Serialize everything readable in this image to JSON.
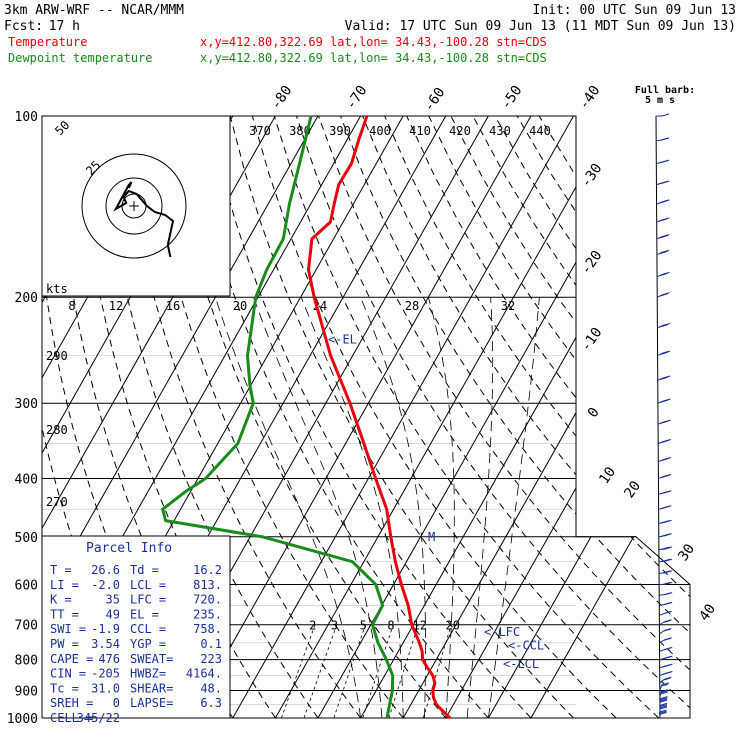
{
  "header": {
    "model": "3km ARW-WRF -- NCAR/MMM",
    "init": "Init: 00 UTC Sun 09 Jun 13",
    "fcst_label": "Fcst:",
    "fcst_value": "17 h",
    "valid": "Valid: 17 UTC Sun 09 Jun 13 (11 MDT Sun 09 Jun 13)",
    "legend": [
      {
        "label": "Temperature",
        "info": "x,y=412.80,322.69   lat,lon= 34.43,-100.28  stn=CDS",
        "color": "#e8000b"
      },
      {
        "label": "Dewpoint temperature",
        "info": "x,y=412.80,322.69   lat,lon= 34.43,-100.28  stn=CDS",
        "color": "#1a8a1a"
      }
    ]
  },
  "colors": {
    "temperature": "#e8000b",
    "dewpoint": "#1a8a1a",
    "parcel_text": "#1a2fa0",
    "isobars": "#000000",
    "adiabats": "#000000"
  },
  "chart_data": {
    "type": "line",
    "diagram": "skew-T log-P",
    "pressure_levels": [
      100,
      200,
      300,
      400,
      500,
      600,
      700,
      800,
      900,
      1000
    ],
    "isotherm_labels": [
      "-80",
      "-70",
      "-60",
      "-50",
      "-40",
      "-30",
      "-20",
      "-10",
      "0",
      "10",
      "20",
      "30",
      "40"
    ],
    "theta_labels": [
      "370",
      "380",
      "390",
      "400",
      "410",
      "420",
      "430",
      "440"
    ],
    "mixing_ratio_labels": [
      "2",
      "3",
      "5",
      "8",
      "12",
      "20"
    ],
    "inset_speed_labels": [
      "8",
      "12",
      "16",
      "20",
      "24",
      "28",
      "32"
    ],
    "inset_ring_labels": [
      "50",
      "25"
    ],
    "inset_unit": "kts",
    "side_theta_labels": [
      "290",
      "280",
      "270"
    ],
    "series": [
      {
        "name": "Temperature",
        "points": [
          {
            "p": 1000,
            "t": 31.0
          },
          {
            "p": 975,
            "t": 28.5
          },
          {
            "p": 950,
            "t": 26.0
          },
          {
            "p": 925,
            "t": 24.4
          },
          {
            "p": 900,
            "t": 23.3
          },
          {
            "p": 875,
            "t": 22.8
          },
          {
            "p": 850,
            "t": 21.3
          },
          {
            "p": 825,
            "t": 19.0
          },
          {
            "p": 800,
            "t": 16.8
          },
          {
            "p": 775,
            "t": 15.6
          },
          {
            "p": 750,
            "t": 13.8
          },
          {
            "p": 700,
            "t": 9.6
          },
          {
            "p": 650,
            "t": 6.2
          },
          {
            "p": 600,
            "t": 1.8
          },
          {
            "p": 550,
            "t": -2.6
          },
          {
            "p": 500,
            "t": -7.0
          },
          {
            "p": 450,
            "t": -11.6
          },
          {
            "p": 400,
            "t": -18.3
          },
          {
            "p": 350,
            "t": -25.7
          },
          {
            "p": 300,
            "t": -34.3
          },
          {
            "p": 250,
            "t": -45.2
          },
          {
            "p": 200,
            "t": -56.8
          },
          {
            "p": 180,
            "t": -61.8
          },
          {
            "p": 160,
            "t": -65.1
          },
          {
            "p": 150,
            "t": -63.0
          },
          {
            "p": 140,
            "t": -64.5
          },
          {
            "p": 130,
            "t": -66.0
          },
          {
            "p": 120,
            "t": -65.8
          },
          {
            "p": 110,
            "t": -67.2
          },
          {
            "p": 100,
            "t": -68.5
          }
        ]
      },
      {
        "name": "Dewpoint temperature",
        "points": [
          {
            "p": 1000,
            "t": 16.2
          },
          {
            "p": 950,
            "t": 15.0
          },
          {
            "p": 900,
            "t": 13.8
          },
          {
            "p": 850,
            "t": 11.9
          },
          {
            "p": 800,
            "t": 8.3
          },
          {
            "p": 750,
            "t": 4.1
          },
          {
            "p": 700,
            "t": 0.4
          },
          {
            "p": 650,
            "t": 0.2
          },
          {
            "p": 600,
            "t": -4.2
          },
          {
            "p": 550,
            "t": -12.7
          },
          {
            "p": 500,
            "t": -37.1
          },
          {
            "p": 470,
            "t": -62.0
          },
          {
            "p": 450,
            "t": -64.2
          },
          {
            "p": 420,
            "t": -61.1
          },
          {
            "p": 400,
            "t": -58.2
          },
          {
            "p": 350,
            "t": -55.3
          },
          {
            "p": 300,
            "t": -57.0
          },
          {
            "p": 280,
            "t": -60.2
          },
          {
            "p": 250,
            "t": -64.7
          },
          {
            "p": 200,
            "t": -70.5
          },
          {
            "p": 180,
            "t": -71.6
          },
          {
            "p": 160,
            "t": -71.8
          },
          {
            "p": 140,
            "t": -75.0
          },
          {
            "p": 120,
            "t": -78.0
          },
          {
            "p": 100,
            "t": -81.6
          }
        ]
      }
    ],
    "annotations": [
      {
        "label": "<-EL",
        "p": 235
      },
      {
        "label": "M",
        "p": 500
      },
      {
        "label": "<-LFC",
        "p": 720
      },
      {
        "label": "<-CCL",
        "p": 758
      },
      {
        "label": "<-LCL",
        "p": 813
      }
    ],
    "hodograph": [
      [
        14,
        -17
      ],
      [
        13,
        -13
      ],
      [
        14,
        -9
      ],
      [
        15,
        -5
      ],
      [
        12,
        -3
      ],
      [
        8,
        -2
      ],
      [
        5,
        0
      ],
      [
        3,
        2
      ],
      [
        1,
        4
      ],
      [
        -2,
        5
      ],
      [
        -4,
        3
      ],
      [
        -3,
        1
      ],
      [
        -5,
        0
      ],
      [
        -7,
        -1
      ],
      [
        -2,
        7
      ],
      [
        -1,
        8
      ],
      [
        -2,
        6
      ]
    ],
    "wind_barb_label": "Full barb:",
    "wind_barb_unit": "5 m s",
    "wind_profile": [
      {
        "p": 1000,
        "spd": 15,
        "dir": 175
      },
      {
        "p": 975,
        "spd": 20,
        "dir": 180
      },
      {
        "p": 950,
        "spd": 20,
        "dir": 185
      },
      {
        "p": 925,
        "spd": 15,
        "dir": 190
      },
      {
        "p": 900,
        "spd": 10,
        "dir": 200
      },
      {
        "p": 875,
        "spd": 10,
        "dir": 230
      },
      {
        "p": 850,
        "spd": 15,
        "dir": 250
      },
      {
        "p": 825,
        "spd": 15,
        "dir": 255
      },
      {
        "p": 800,
        "spd": 15,
        "dir": 255
      },
      {
        "p": 775,
        "spd": 10,
        "dir": 250
      },
      {
        "p": 750,
        "spd": 10,
        "dir": 240
      },
      {
        "p": 725,
        "spd": 10,
        "dir": 235
      },
      {
        "p": 700,
        "spd": 10,
        "dir": 240
      },
      {
        "p": 675,
        "spd": 10,
        "dir": 250
      },
      {
        "p": 650,
        "spd": 10,
        "dir": 260
      },
      {
        "p": 625,
        "spd": 10,
        "dir": 265
      },
      {
        "p": 600,
        "spd": 15,
        "dir": 270
      },
      {
        "p": 575,
        "spd": 15,
        "dir": 265
      },
      {
        "p": 550,
        "spd": 15,
        "dir": 265
      },
      {
        "p": 525,
        "spd": 20,
        "dir": 265
      },
      {
        "p": 500,
        "spd": 20,
        "dir": 260
      },
      {
        "p": 475,
        "spd": 20,
        "dir": 260
      },
      {
        "p": 450,
        "spd": 25,
        "dir": 255
      },
      {
        "p": 425,
        "spd": 25,
        "dir": 255
      },
      {
        "p": 400,
        "spd": 30,
        "dir": 250
      },
      {
        "p": 375,
        "spd": 30,
        "dir": 250
      },
      {
        "p": 350,
        "spd": 35,
        "dir": 250
      },
      {
        "p": 325,
        "spd": 35,
        "dir": 250
      },
      {
        "p": 300,
        "spd": 35,
        "dir": 248
      },
      {
        "p": 275,
        "spd": 35,
        "dir": 245
      },
      {
        "p": 250,
        "spd": 35,
        "dir": 245
      },
      {
        "p": 225,
        "spd": 35,
        "dir": 245
      },
      {
        "p": 200,
        "spd": 30,
        "dir": 245
      },
      {
        "p": 185,
        "spd": 30,
        "dir": 245
      },
      {
        "p": 170,
        "spd": 30,
        "dir": 245
      },
      {
        "p": 160,
        "spd": 30,
        "dir": 248
      },
      {
        "p": 150,
        "spd": 25,
        "dir": 250
      },
      {
        "p": 140,
        "spd": 25,
        "dir": 250
      },
      {
        "p": 130,
        "spd": 20,
        "dir": 255
      },
      {
        "p": 120,
        "spd": 15,
        "dir": 255
      },
      {
        "p": 110,
        "spd": 10,
        "dir": 260
      },
      {
        "p": 100,
        "spd": 5,
        "dir": 270
      }
    ]
  },
  "parcel": {
    "title": "Parcel Info",
    "rows": [
      [
        "T  =",
        "26.6",
        "Td =",
        "16.2"
      ],
      [
        "LI =",
        "-2.0",
        "LCL =",
        "813."
      ],
      [
        "K  =",
        "35",
        "LFC =",
        "720."
      ],
      [
        "TT =",
        "49",
        "EL  =",
        "235."
      ],
      [
        "SWI =",
        "-1.9",
        "CCL =",
        "758."
      ],
      [
        "PW =",
        "3.54",
        "YGP =",
        "0.1"
      ],
      [
        "CAPE =",
        "476",
        "SWEAT=",
        "223"
      ],
      [
        "CIN =",
        "-205",
        "HWBZ=",
        "4164."
      ],
      [
        "Tc =",
        "31.0",
        "SHEAR=",
        "48."
      ],
      [
        "SREH =",
        "0",
        "LAPSE=",
        "6.3"
      ],
      [
        "CELL =",
        "345/22",
        "",
        ""
      ]
    ]
  }
}
